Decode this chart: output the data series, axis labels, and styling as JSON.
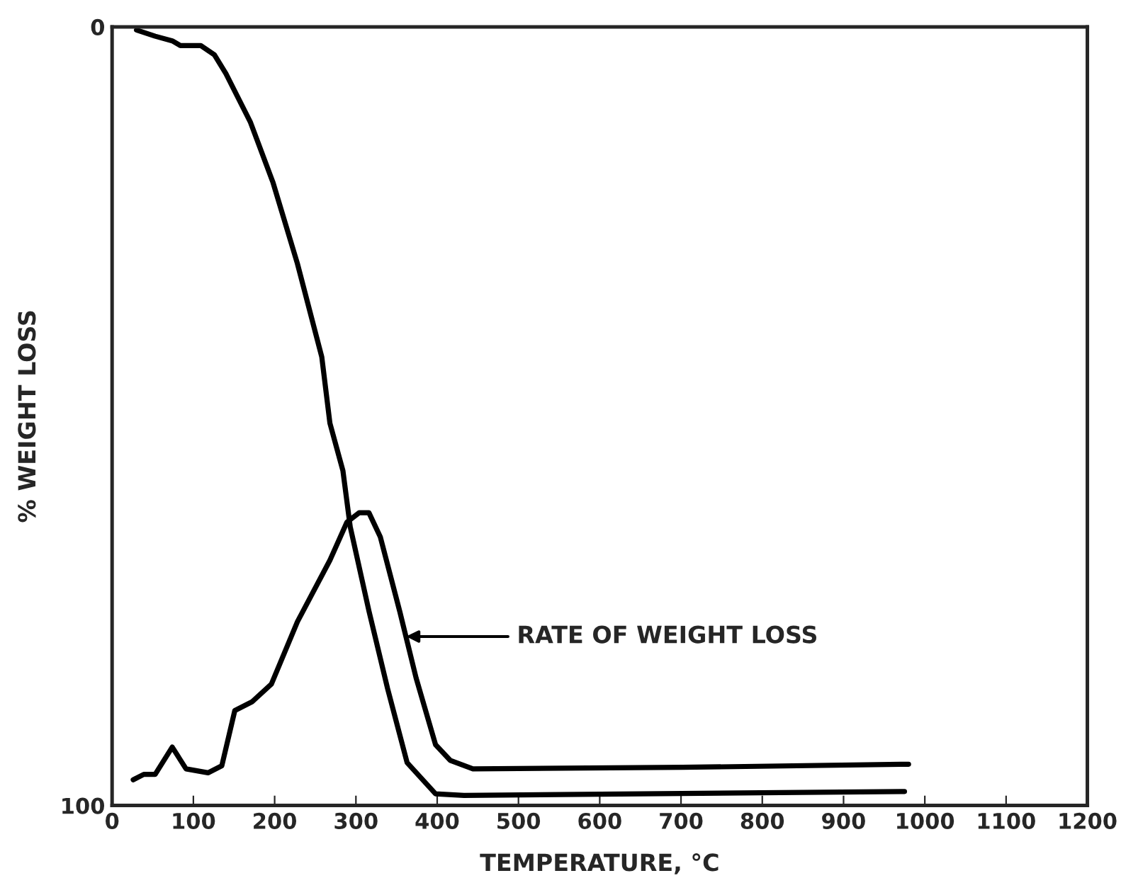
{
  "chart_data": {
    "type": "line",
    "xlabel": "TEMPERATURE, °C",
    "ylabel": "% WEIGHT LOSS",
    "xlim": [
      0,
      1200
    ],
    "xticks": [
      0,
      100,
      200,
      300,
      400,
      500,
      600,
      700,
      800,
      900,
      1000,
      1100,
      1200
    ],
    "ylim": [
      100,
      0
    ],
    "yticks": [
      0,
      100
    ],
    "grid": false,
    "legend": false,
    "marker": "none",
    "line_style": "solid",
    "series": [
      {
        "color": "#000000",
        "x": [
          30,
          53,
          74,
          84,
          109,
          126,
          140,
          170,
          198,
          228,
          258,
          268,
          284,
          293,
          316,
          339,
          363,
          398,
          433,
          975
        ],
        "values": [
          0.4,
          1.2,
          1.8,
          2.4,
          2.4,
          3.6,
          6,
          12.2,
          20,
          30.4,
          42.4,
          50.9,
          57,
          64.2,
          75,
          85,
          94.5,
          98.5,
          98.7,
          98.2
        ]
      },
      {
        "color": "#000000",
        "x": [
          26,
          39,
          53,
          74,
          91,
          118,
          135,
          151,
          172,
          196,
          228,
          268,
          289,
          304,
          316,
          330,
          354,
          374,
          398,
          416,
          444,
          702,
          980
        ],
        "values": [
          96.7,
          96.0,
          96.0,
          92.5,
          95.3,
          95.8,
          94.9,
          87.8,
          86.7,
          84.4,
          76.4,
          68.5,
          63.6,
          62.4,
          62.4,
          65.5,
          75.1,
          83.6,
          92.2,
          94.2,
          95.3,
          95.1,
          94.7
        ]
      }
    ],
    "annotations": [
      "RATE OF WEIGHT LOSS"
    ]
  }
}
